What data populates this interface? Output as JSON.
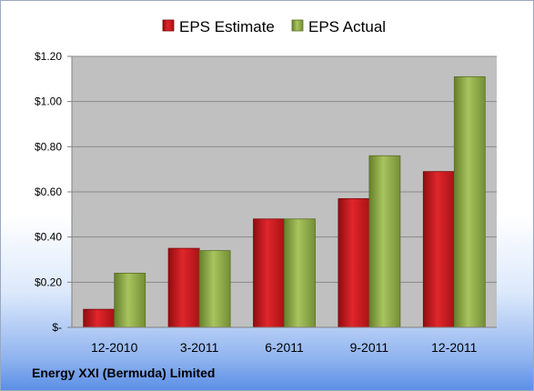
{
  "footer": {
    "company": "Energy XXI (Bermuda) Limited"
  },
  "colors": {
    "estimate": "#c8151b",
    "actual": "#8fac45",
    "plot_background": "#c0c0c0"
  },
  "chart_data": {
    "type": "bar",
    "title": "",
    "xlabel": "",
    "ylabel": "",
    "categories": [
      "12-2010",
      "3-2011",
      "6-2011",
      "9-2011",
      "12-2011"
    ],
    "series": [
      {
        "name": "EPS Estimate",
        "values": [
          0.08,
          0.35,
          0.48,
          0.57,
          0.69
        ]
      },
      {
        "name": "EPS Actual",
        "values": [
          0.24,
          0.34,
          0.48,
          0.76,
          1.11
        ]
      }
    ],
    "ylim": [
      0,
      1.2
    ],
    "yticks": [
      0,
      0.2,
      0.4,
      0.6,
      0.8,
      1.0,
      1.2
    ],
    "ytick_labels": [
      "$-",
      "$0.20",
      "$0.40",
      "$0.60",
      "$0.80",
      "$1.00",
      "$1.20"
    ],
    "grid": true,
    "legend": "top-center"
  }
}
